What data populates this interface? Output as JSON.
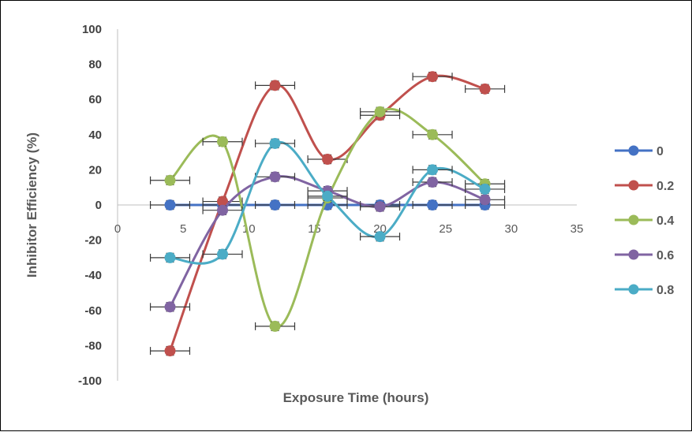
{
  "chart_data": {
    "type": "scatter",
    "title": "",
    "xlabel": "Exposure Time (hours)",
    "ylabel": "Inhibitor Efficiency (%)",
    "xlim": [
      0,
      35
    ],
    "ylim": [
      -100,
      100
    ],
    "x_ticks": [
      0,
      5,
      10,
      15,
      20,
      25,
      30,
      35
    ],
    "y_ticks": [
      -100,
      -80,
      -60,
      -40,
      -20,
      0,
      20,
      40,
      60,
      80,
      100
    ],
    "grid": false,
    "smooth_lines": true,
    "error_bars": true,
    "legend_position": "right",
    "series": [
      {
        "name": "0",
        "color": "#4472C4",
        "x": [
          4,
          8,
          12,
          16,
          20,
          24,
          28
        ],
        "y": [
          0,
          0,
          0,
          0,
          0,
          0,
          0
        ]
      },
      {
        "name": "0.2",
        "color": "#C0504D",
        "x": [
          4,
          8,
          12,
          16,
          20,
          24,
          28
        ],
        "y": [
          -83,
          2,
          68,
          26,
          51,
          73,
          66
        ]
      },
      {
        "name": "0.4",
        "color": "#9BBB59",
        "x": [
          4,
          8,
          12,
          16,
          20,
          24,
          28
        ],
        "y": [
          14,
          36,
          -69,
          4,
          53,
          40,
          12
        ]
      },
      {
        "name": "0.6",
        "color": "#8064A2",
        "x": [
          4,
          8,
          12,
          16,
          20,
          24,
          28
        ],
        "y": [
          -58,
          -3,
          16,
          8,
          -1,
          13,
          3
        ]
      },
      {
        "name": "0.8",
        "color": "#4BACC6",
        "x": [
          4,
          8,
          12,
          16,
          20,
          24,
          28
        ],
        "y": [
          -30,
          -28,
          35,
          5,
          -18,
          20,
          9
        ]
      }
    ]
  }
}
